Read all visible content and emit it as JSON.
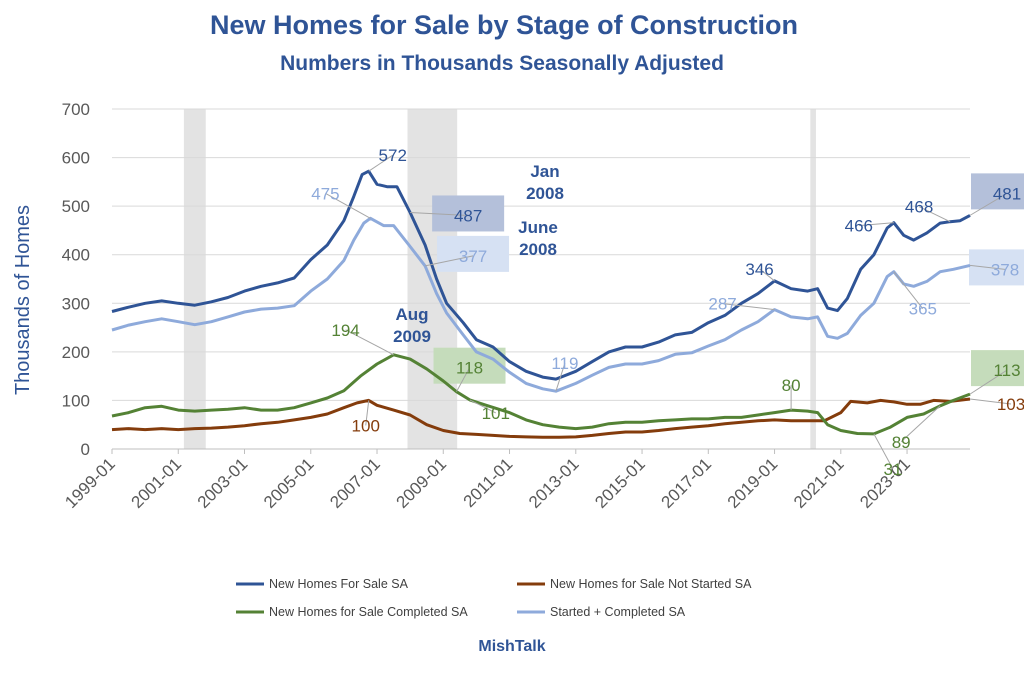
{
  "chart_data": {
    "type": "line",
    "title": "New Homes for Sale by Stage of Construction",
    "subtitle": "Numbers in Thousands Seasonally Adjusted",
    "ylabel": "Thousands of Homes",
    "xlabel": "",
    "ylim": [
      0,
      700
    ],
    "yticks": [
      "0",
      "100",
      "200",
      "300",
      "400",
      "500",
      "600",
      "700"
    ],
    "xticks": [
      "1999-01",
      "2001-01",
      "2003-01",
      "2005-01",
      "2007-01",
      "2009-01",
      "2011-01",
      "2013-01",
      "2015-01",
      "2017-01",
      "2019-01",
      "2021-01",
      "2023-01"
    ],
    "x_range_years": [
      1999.0,
      2024.9
    ],
    "recessions": [
      {
        "start": 2001.17,
        "end": 2001.83
      },
      {
        "start": 2007.92,
        "end": 2009.42
      },
      {
        "start": 2020.08,
        "end": 2020.25
      }
    ],
    "series": [
      {
        "name": "New Homes For Sale SA",
        "color": "#2f5496",
        "points": [
          [
            1999.0,
            283
          ],
          [
            1999.5,
            292
          ],
          [
            2000.0,
            300
          ],
          [
            2000.5,
            305
          ],
          [
            2001.0,
            300
          ],
          [
            2001.5,
            296
          ],
          [
            2002.0,
            303
          ],
          [
            2002.5,
            312
          ],
          [
            2003.0,
            325
          ],
          [
            2003.5,
            335
          ],
          [
            2004.0,
            342
          ],
          [
            2004.5,
            352
          ],
          [
            2005.0,
            390
          ],
          [
            2005.5,
            420
          ],
          [
            2006.0,
            470
          ],
          [
            2006.3,
            520
          ],
          [
            2006.55,
            565
          ],
          [
            2006.75,
            572
          ],
          [
            2007.0,
            545
          ],
          [
            2007.3,
            540
          ],
          [
            2007.6,
            540
          ],
          [
            2008.0,
            487
          ],
          [
            2008.45,
            420
          ],
          [
            2008.8,
            350
          ],
          [
            2009.1,
            300
          ],
          [
            2009.6,
            260
          ],
          [
            2010.0,
            225
          ],
          [
            2010.5,
            210
          ],
          [
            2011.0,
            180
          ],
          [
            2011.5,
            160
          ],
          [
            2012.0,
            148
          ],
          [
            2012.4,
            144
          ],
          [
            2013.0,
            160
          ],
          [
            2013.5,
            180
          ],
          [
            2014.0,
            200
          ],
          [
            2014.5,
            210
          ],
          [
            2015.0,
            210
          ],
          [
            2015.5,
            220
          ],
          [
            2016.0,
            235
          ],
          [
            2016.5,
            240
          ],
          [
            2017.0,
            260
          ],
          [
            2017.5,
            275
          ],
          [
            2018.0,
            300
          ],
          [
            2018.5,
            320
          ],
          [
            2019.0,
            346
          ],
          [
            2019.5,
            330
          ],
          [
            2020.0,
            325
          ],
          [
            2020.3,
            330
          ],
          [
            2020.6,
            290
          ],
          [
            2020.9,
            285
          ],
          [
            2021.2,
            310
          ],
          [
            2021.6,
            370
          ],
          [
            2022.0,
            400
          ],
          [
            2022.4,
            455
          ],
          [
            2022.6,
            466
          ],
          [
            2022.9,
            440
          ],
          [
            2023.2,
            430
          ],
          [
            2023.6,
            445
          ],
          [
            2024.0,
            465
          ],
          [
            2024.3,
            468
          ],
          [
            2024.6,
            470
          ],
          [
            2024.9,
            481
          ]
        ]
      },
      {
        "name": "New Homes for Sale Not Started SA",
        "color": "#843c0c",
        "points": [
          [
            1999.0,
            40
          ],
          [
            1999.5,
            42
          ],
          [
            2000.0,
            40
          ],
          [
            2000.5,
            42
          ],
          [
            2001.0,
            40
          ],
          [
            2001.5,
            42
          ],
          [
            2002.0,
            43
          ],
          [
            2002.5,
            45
          ],
          [
            2003.0,
            48
          ],
          [
            2003.5,
            52
          ],
          [
            2004.0,
            55
          ],
          [
            2004.5,
            60
          ],
          [
            2005.0,
            65
          ],
          [
            2005.5,
            72
          ],
          [
            2006.0,
            85
          ],
          [
            2006.4,
            95
          ],
          [
            2006.75,
            100
          ],
          [
            2007.0,
            90
          ],
          [
            2007.5,
            80
          ],
          [
            2008.0,
            70
          ],
          [
            2008.5,
            50
          ],
          [
            2009.0,
            38
          ],
          [
            2009.5,
            32
          ],
          [
            2010.0,
            30
          ],
          [
            2010.5,
            28
          ],
          [
            2011.0,
            26
          ],
          [
            2011.5,
            25
          ],
          [
            2012.0,
            24
          ],
          [
            2012.5,
            24
          ],
          [
            2013.0,
            25
          ],
          [
            2013.5,
            28
          ],
          [
            2014.0,
            32
          ],
          [
            2014.5,
            35
          ],
          [
            2015.0,
            35
          ],
          [
            2015.5,
            38
          ],
          [
            2016.0,
            42
          ],
          [
            2016.5,
            45
          ],
          [
            2017.0,
            48
          ],
          [
            2017.5,
            52
          ],
          [
            2018.0,
            55
          ],
          [
            2018.5,
            58
          ],
          [
            2019.0,
            60
          ],
          [
            2019.5,
            58
          ],
          [
            2020.0,
            58
          ],
          [
            2020.5,
            58
          ],
          [
            2021.0,
            75
          ],
          [
            2021.3,
            98
          ],
          [
            2021.8,
            95
          ],
          [
            2022.2,
            100
          ],
          [
            2022.6,
            97
          ],
          [
            2023.0,
            92
          ],
          [
            2023.4,
            92
          ],
          [
            2023.8,
            100
          ],
          [
            2024.3,
            98
          ],
          [
            2024.9,
            103
          ]
        ]
      },
      {
        "name": "New Homes for Sale Completed SA",
        "color": "#548235",
        "points": [
          [
            1999.0,
            68
          ],
          [
            1999.5,
            75
          ],
          [
            2000.0,
            85
          ],
          [
            2000.5,
            88
          ],
          [
            2001.0,
            80
          ],
          [
            2001.5,
            78
          ],
          [
            2002.0,
            80
          ],
          [
            2002.5,
            82
          ],
          [
            2003.0,
            85
          ],
          [
            2003.5,
            80
          ],
          [
            2004.0,
            80
          ],
          [
            2004.5,
            85
          ],
          [
            2005.0,
            95
          ],
          [
            2005.5,
            105
          ],
          [
            2006.0,
            120
          ],
          [
            2006.5,
            150
          ],
          [
            2007.0,
            175
          ],
          [
            2007.5,
            194
          ],
          [
            2008.0,
            185
          ],
          [
            2008.5,
            165
          ],
          [
            2009.0,
            140
          ],
          [
            2009.4,
            118
          ],
          [
            2009.8,
            101
          ],
          [
            2010.3,
            90
          ],
          [
            2011.0,
            75
          ],
          [
            2011.5,
            60
          ],
          [
            2012.0,
            50
          ],
          [
            2012.5,
            45
          ],
          [
            2013.0,
            42
          ],
          [
            2013.5,
            45
          ],
          [
            2014.0,
            52
          ],
          [
            2014.5,
            55
          ],
          [
            2015.0,
            55
          ],
          [
            2015.5,
            58
          ],
          [
            2016.0,
            60
          ],
          [
            2016.5,
            62
          ],
          [
            2017.0,
            62
          ],
          [
            2017.5,
            65
          ],
          [
            2018.0,
            65
          ],
          [
            2018.5,
            70
          ],
          [
            2019.0,
            75
          ],
          [
            2019.5,
            80
          ],
          [
            2020.0,
            78
          ],
          [
            2020.3,
            75
          ],
          [
            2020.6,
            50
          ],
          [
            2021.0,
            38
          ],
          [
            2021.5,
            32
          ],
          [
            2022.0,
            31
          ],
          [
            2022.5,
            45
          ],
          [
            2023.0,
            65
          ],
          [
            2023.5,
            72
          ],
          [
            2024.0,
            89
          ],
          [
            2024.4,
            100
          ],
          [
            2024.9,
            113
          ]
        ]
      },
      {
        "name": "Started + Completed SA",
        "color": "#8eaadb",
        "points": [
          [
            1999.0,
            245
          ],
          [
            1999.5,
            255
          ],
          [
            2000.0,
            262
          ],
          [
            2000.5,
            268
          ],
          [
            2001.0,
            262
          ],
          [
            2001.5,
            256
          ],
          [
            2002.0,
            262
          ],
          [
            2002.5,
            272
          ],
          [
            2003.0,
            282
          ],
          [
            2003.5,
            288
          ],
          [
            2004.0,
            290
          ],
          [
            2004.5,
            295
          ],
          [
            2005.0,
            325
          ],
          [
            2005.5,
            350
          ],
          [
            2006.0,
            388
          ],
          [
            2006.3,
            430
          ],
          [
            2006.6,
            465
          ],
          [
            2006.8,
            475
          ],
          [
            2007.2,
            460
          ],
          [
            2007.5,
            460
          ],
          [
            2008.0,
            417
          ],
          [
            2008.45,
            377
          ],
          [
            2008.8,
            320
          ],
          [
            2009.1,
            280
          ],
          [
            2009.6,
            235
          ],
          [
            2010.0,
            200
          ],
          [
            2010.5,
            185
          ],
          [
            2011.0,
            158
          ],
          [
            2011.5,
            135
          ],
          [
            2012.0,
            124
          ],
          [
            2012.4,
            119
          ],
          [
            2013.0,
            135
          ],
          [
            2013.5,
            152
          ],
          [
            2014.0,
            168
          ],
          [
            2014.5,
            175
          ],
          [
            2015.0,
            175
          ],
          [
            2015.5,
            182
          ],
          [
            2016.0,
            195
          ],
          [
            2016.5,
            198
          ],
          [
            2017.0,
            212
          ],
          [
            2017.5,
            225
          ],
          [
            2018.0,
            245
          ],
          [
            2018.5,
            262
          ],
          [
            2019.0,
            287
          ],
          [
            2019.5,
            272
          ],
          [
            2020.0,
            268
          ],
          [
            2020.3,
            272
          ],
          [
            2020.6,
            232
          ],
          [
            2020.9,
            228
          ],
          [
            2021.2,
            238
          ],
          [
            2021.6,
            275
          ],
          [
            2022.0,
            300
          ],
          [
            2022.4,
            355
          ],
          [
            2022.6,
            365
          ],
          [
            2022.9,
            340
          ],
          [
            2023.2,
            335
          ],
          [
            2023.6,
            345
          ],
          [
            2024.0,
            365
          ],
          [
            2024.4,
            370
          ],
          [
            2024.9,
            378
          ]
        ]
      }
    ],
    "annotations": [
      {
        "text": "572",
        "series": 0,
        "x": 2006.75,
        "y": 572
      },
      {
        "text": "475",
        "series": 3,
        "x": 2006.8,
        "y": 475
      },
      {
        "text": "487",
        "series": 0,
        "x": 2008.0,
        "y": 487,
        "boxed": true
      },
      {
        "text": "377",
        "series": 3,
        "x": 2008.45,
        "y": 377,
        "boxed": true
      },
      {
        "text": "194",
        "series": 2,
        "x": 2007.5,
        "y": 194
      },
      {
        "text": "118",
        "series": 2,
        "x": 2009.4,
        "y": 118,
        "boxed": true
      },
      {
        "text": "101",
        "series": 2,
        "x": 2009.8,
        "y": 101
      },
      {
        "text": "100",
        "series": 1,
        "x": 2006.75,
        "y": 100
      },
      {
        "text": "119",
        "series": 3,
        "x": 2012.4,
        "y": 119
      },
      {
        "text": "346",
        "series": 0,
        "x": 2019.0,
        "y": 346
      },
      {
        "text": "287",
        "series": 3,
        "x": 2019.0,
        "y": 287
      },
      {
        "text": "80",
        "series": 2,
        "x": 2019.5,
        "y": 80
      },
      {
        "text": "466",
        "series": 0,
        "x": 2022.6,
        "y": 466
      },
      {
        "text": "365",
        "series": 3,
        "x": 2022.6,
        "y": 365
      },
      {
        "text": "31",
        "series": 2,
        "x": 2022.0,
        "y": 31
      },
      {
        "text": "89",
        "series": 2,
        "x": 2024.0,
        "y": 89
      },
      {
        "text": "468",
        "series": 0,
        "x": 2024.3,
        "y": 468
      },
      {
        "text": "481",
        "series": 0,
        "x": 2024.9,
        "y": 481,
        "boxed": true
      },
      {
        "text": "378",
        "series": 3,
        "x": 2024.9,
        "y": 378,
        "boxed": true
      },
      {
        "text": "113",
        "series": 2,
        "x": 2024.9,
        "y": 113,
        "boxed": true
      },
      {
        "text": "103",
        "series": 1,
        "x": 2024.9,
        "y": 103
      }
    ],
    "date_notes": [
      {
        "lines": [
          "Jan",
          "2008"
        ],
        "color": "#2f5496"
      },
      {
        "lines": [
          "June",
          "2008"
        ],
        "color": "#2f5496"
      },
      {
        "lines": [
          "Aug",
          "2009"
        ],
        "color": "#2f5496"
      }
    ],
    "legend": [
      {
        "label": "New Homes For Sale SA",
        "series": 0
      },
      {
        "label": "New Homes for Sale Not Started SA",
        "series": 1
      },
      {
        "label": "New Homes for Sale Completed SA",
        "series": 2
      },
      {
        "label": "Started + Completed SA",
        "series": 3
      }
    ],
    "legend_position": "bottom",
    "source": "MishTalk"
  }
}
